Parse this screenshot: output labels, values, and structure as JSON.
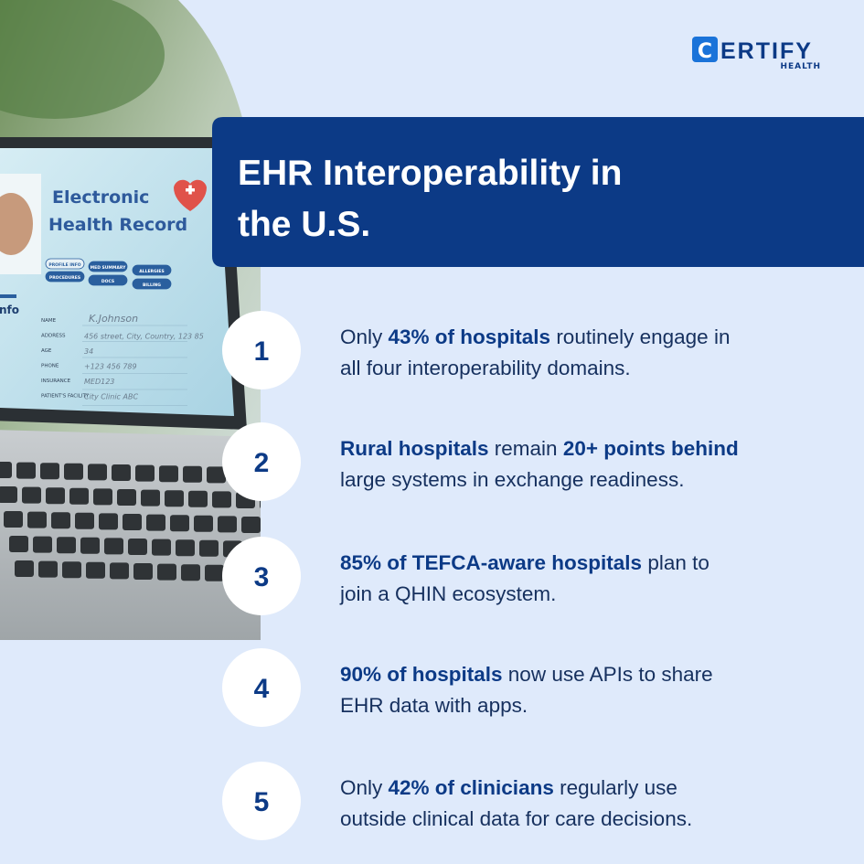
{
  "logo": {
    "letter": "C",
    "name": "ERTIFY",
    "sub": "HEALTH"
  },
  "title": [
    "EHR Interoperability in",
    "the U.S."
  ],
  "photo": {
    "heading": [
      "Electronic",
      "Health Record"
    ],
    "buttons": [
      "PROFILE INFO",
      "MED SUMMARY",
      "ALLERGIES",
      "PROCEDURES",
      "DOCS",
      "BILLING"
    ],
    "section": "nfo",
    "fields": [
      {
        "label": "NAME",
        "value": "K.Johnson"
      },
      {
        "label": "ADDRESS",
        "value": "456 street, City, Country, 123 85"
      },
      {
        "label": "AGE",
        "value": "34"
      },
      {
        "label": "PHONE",
        "value": "+123 456 789"
      },
      {
        "label": "INSURANCE",
        "value": "MED123"
      },
      {
        "label": "PATIENT'S FACILITY",
        "value": "City Clinic ABC"
      }
    ]
  },
  "items": [
    {
      "number": "1",
      "lines": [
        [
          {
            "text": "Only ",
            "bold": false
          },
          {
            "text": "43% of hospitals",
            "bold": true
          },
          {
            "text": " routinely engage in",
            "bold": false
          }
        ],
        [
          {
            "text": "all four interoperability domains.",
            "bold": false
          }
        ]
      ]
    },
    {
      "number": "2",
      "lines": [
        [
          {
            "text": "Rural hospitals",
            "bold": true
          },
          {
            "text": " remain ",
            "bold": false
          },
          {
            "text": "20+ points behind",
            "bold": true
          }
        ],
        [
          {
            "text": "large systems in exchange readiness.",
            "bold": false
          }
        ]
      ]
    },
    {
      "number": "3",
      "lines": [
        [
          {
            "text": "85% of TEFCA-aware hospitals",
            "bold": true
          },
          {
            "text": " plan to",
            "bold": false
          }
        ],
        [
          {
            "text": "join a QHIN ecosystem.",
            "bold": false
          }
        ]
      ]
    },
    {
      "number": "4",
      "lines": [
        [
          {
            "text": "90% of hospitals",
            "bold": true
          },
          {
            "text": " now use APIs to share",
            "bold": false
          }
        ],
        [
          {
            "text": "EHR data with apps.",
            "bold": false
          }
        ]
      ]
    },
    {
      "number": "5",
      "lines": [
        [
          {
            "text": "Only ",
            "bold": false
          },
          {
            "text": "42% of clinicians",
            "bold": true
          },
          {
            "text": " regularly use",
            "bold": false
          }
        ],
        [
          {
            "text": "outside clinical data for care decisions.",
            "bold": false
          }
        ]
      ]
    }
  ]
}
